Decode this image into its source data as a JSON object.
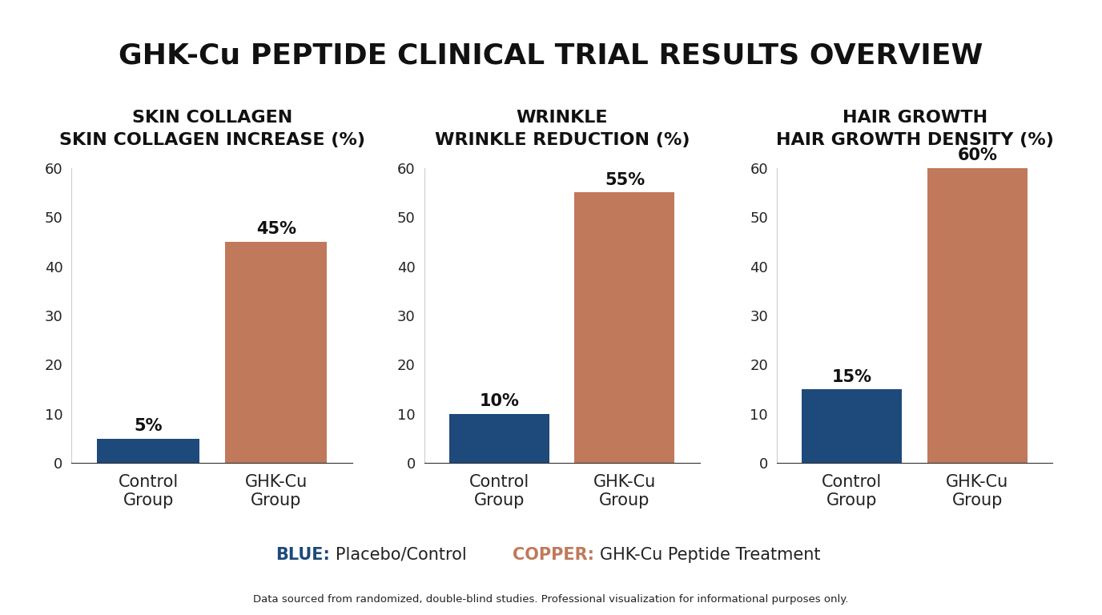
{
  "title": "GHK-Cu PEPTIDE CLINICAL TRIAL RESULTS OVERVIEW",
  "key": [
    {
      "label": "BLUE:",
      "text": "Placebo/Control",
      "color": "#1d4a7a"
    },
    {
      "label": "COPPER:",
      "text": "GHK-Cu Peptide Treatment",
      "color": "#c0795a"
    }
  ],
  "footnote": "Data sourced from randomized, double-blind studies. Professional visualization for informational purposes only.",
  "chart_data": [
    {
      "type": "bar",
      "title": "SKIN COLLAGEN",
      "subtitle": "SKIN COLLAGEN INCREASE (%)",
      "categories": [
        "Control Group",
        "GHK-Cu Group"
      ],
      "values": [
        5,
        45
      ],
      "value_labels": [
        "5%",
        "45%"
      ],
      "colors": [
        "#1d4a7a",
        "#c0795a"
      ],
      "ylim": [
        0,
        60
      ],
      "yticks": [
        0,
        10,
        20,
        30,
        40,
        50,
        60
      ],
      "data_labels": true,
      "grid": false
    },
    {
      "type": "bar",
      "title": "WRINKLE",
      "subtitle": "WRINKLE REDUCTION (%)",
      "categories": [
        "Control Group",
        "GHK-Cu Group"
      ],
      "values": [
        10,
        55
      ],
      "value_labels": [
        "10%",
        "55%"
      ],
      "colors": [
        "#1d4a7a",
        "#c0795a"
      ],
      "ylim": [
        0,
        60
      ],
      "yticks": [
        0,
        10,
        20,
        30,
        40,
        50,
        60
      ],
      "data_labels": true,
      "grid": false
    },
    {
      "type": "bar",
      "title": "HAIR GROWTH",
      "subtitle": "HAIR GROWTH DENSITY (%)",
      "categories": [
        "Control Group",
        "GHK-Cu Group"
      ],
      "values": [
        15,
        60
      ],
      "value_labels": [
        "15%",
        "60%"
      ],
      "colors": [
        "#1d4a7a",
        "#c0795a"
      ],
      "ylim": [
        0,
        60
      ],
      "yticks": [
        0,
        10,
        20,
        30,
        40,
        50,
        60
      ],
      "data_labels": true,
      "grid": false
    }
  ]
}
